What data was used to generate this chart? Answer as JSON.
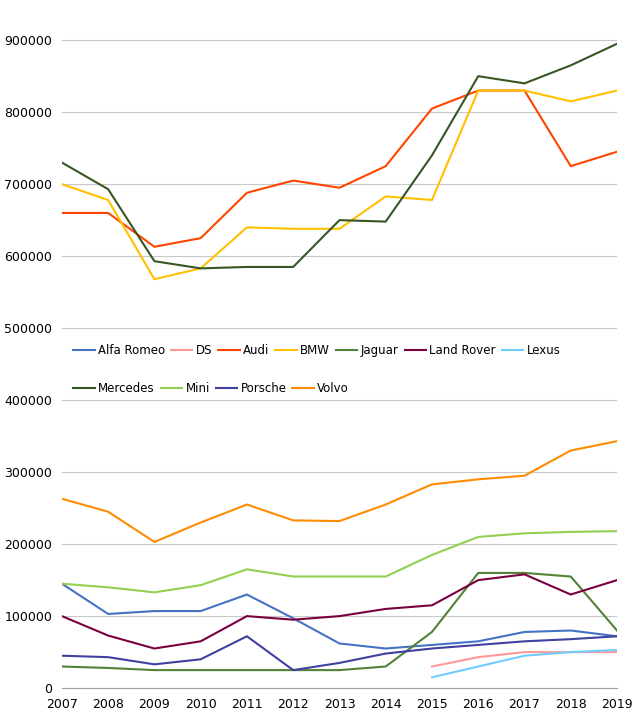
{
  "years": [
    2007,
    2008,
    2009,
    2010,
    2011,
    2012,
    2013,
    2014,
    2015,
    2016,
    2017,
    2018,
    2019
  ],
  "series": {
    "Alfa Romeo": {
      "color": "#4472C4",
      "values": [
        145000,
        103000,
        107000,
        107000,
        130000,
        97000,
        62000,
        55000,
        60000,
        65000,
        78000,
        80000,
        72000
      ]
    },
    "DS": {
      "color": "#FF9999",
      "values": [
        null,
        null,
        null,
        null,
        null,
        null,
        null,
        null,
        30000,
        43000,
        50000,
        50000,
        50000
      ]
    },
    "Audi": {
      "color": "#FF4500",
      "values": [
        660000,
        660000,
        613000,
        625000,
        688000,
        705000,
        695000,
        725000,
        805000,
        830000,
        830000,
        725000,
        745000
      ]
    },
    "BMW": {
      "color": "#FFC000",
      "values": [
        700000,
        678000,
        568000,
        583000,
        640000,
        638000,
        638000,
        683000,
        678000,
        830000,
        830000,
        815000,
        830000
      ]
    },
    "Jaguar": {
      "color": "#548235",
      "values": [
        30000,
        28000,
        25000,
        25000,
        25000,
        25000,
        25000,
        30000,
        78000,
        160000,
        160000,
        155000,
        80000
      ]
    },
    "Land Rover": {
      "color": "#7B0041",
      "values": [
        100000,
        73000,
        55000,
        65000,
        100000,
        95000,
        100000,
        110000,
        115000,
        150000,
        158000,
        130000,
        150000
      ]
    },
    "Lexus": {
      "color": "#70CCFF",
      "values": [
        null,
        null,
        null,
        null,
        null,
        null,
        null,
        null,
        15000,
        30000,
        45000,
        50000,
        53000
      ]
    },
    "Mercedes": {
      "color": "#375623",
      "values": [
        730000,
        693000,
        593000,
        583000,
        585000,
        585000,
        650000,
        648000,
        740000,
        850000,
        840000,
        865000,
        895000
      ]
    },
    "Mini": {
      "color": "#92D050",
      "values": [
        145000,
        140000,
        133000,
        143000,
        165000,
        155000,
        155000,
        155000,
        185000,
        210000,
        215000,
        217000,
        218000
      ]
    },
    "Porsche": {
      "color": "#4040A0",
      "values": [
        45000,
        43000,
        33000,
        40000,
        72000,
        25000,
        35000,
        48000,
        55000,
        60000,
        65000,
        68000,
        72000
      ]
    },
    "Volvo": {
      "color": "#FF8C00",
      "values": [
        263000,
        245000,
        203000,
        230000,
        255000,
        233000,
        232000,
        255000,
        283000,
        290000,
        295000,
        330000,
        343000
      ]
    }
  },
  "ylim": [
    0,
    950000
  ],
  "yticks": [
    0,
    100000,
    200000,
    300000,
    400000,
    500000,
    600000,
    700000,
    800000,
    900000
  ],
  "background_color": "#FFFFFF",
  "grid_color": "#C8C8C8",
  "legend_row1": [
    "Alfa Romeo",
    "DS",
    "Audi",
    "BMW",
    "Jaguar",
    "Land Rover",
    "Lexus"
  ],
  "legend_row2": [
    "Mercedes",
    "Mini",
    "Porsche",
    "Volvo"
  ],
  "figsize": [
    6.37,
    7.15
  ],
  "dpi": 100
}
